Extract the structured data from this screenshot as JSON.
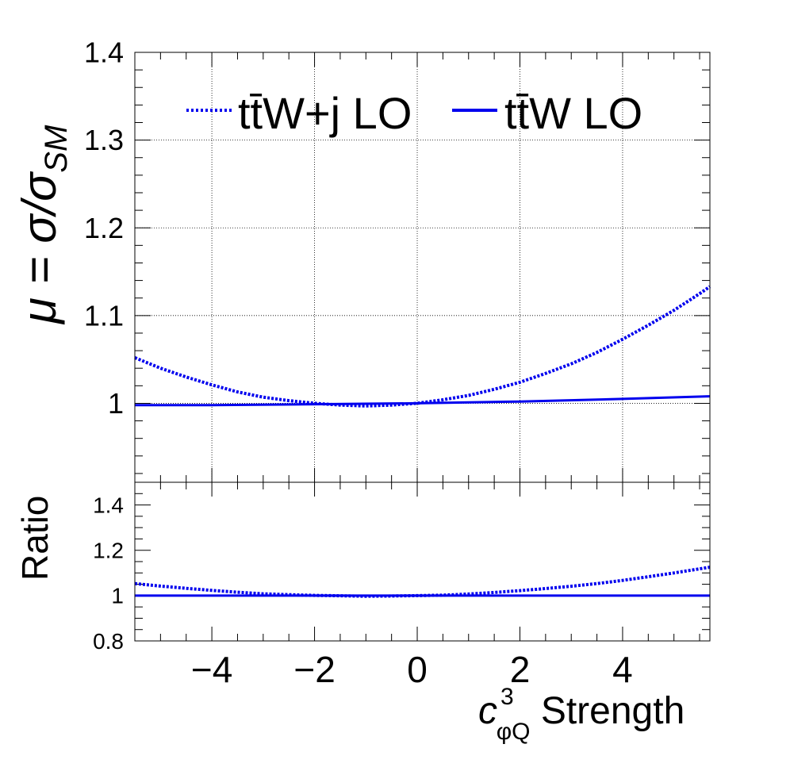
{
  "chart_data": [
    {
      "type": "line",
      "panel": "main",
      "ylabel": "μ = σ/σ",
      "ylabel_sub": "SM",
      "xlim": [
        -5.5,
        5.7
      ],
      "ylim": [
        0.91,
        1.4
      ],
      "yticks": [
        1,
        1.1,
        1.2,
        1.3,
        1.4
      ],
      "ytick_labels": [
        "1",
        "1.1",
        "1.2",
        "1.3",
        "1.4"
      ],
      "xticks": [
        -4,
        -2,
        0,
        2,
        4
      ],
      "grid": true,
      "legend_position": "top",
      "series": [
        {
          "name": "tt̄W+j LO",
          "style": "dotted",
          "color": "#0000ee",
          "x": [
            -5.5,
            -5.0,
            -4.5,
            -4.0,
            -3.5,
            -3.0,
            -2.5,
            -2.0,
            -1.5,
            -1.0,
            -0.5,
            0.0,
            0.5,
            1.0,
            1.5,
            2.0,
            2.5,
            3.0,
            3.5,
            4.0,
            4.5,
            5.0,
            5.5,
            5.7
          ],
          "y": [
            1.052,
            1.04,
            1.03,
            1.021,
            1.013,
            1.007,
            1.003,
            1.0,
            0.998,
            0.997,
            0.998,
            1.0,
            1.004,
            1.009,
            1.016,
            1.024,
            1.034,
            1.045,
            1.058,
            1.073,
            1.089,
            1.106,
            1.125,
            1.133
          ]
        },
        {
          "name": "tt̄W LO",
          "style": "solid",
          "color": "#0000ee",
          "x": [
            -5.5,
            -4.0,
            -2.0,
            0.0,
            2.0,
            4.0,
            5.7
          ],
          "y": [
            0.998,
            0.998,
            0.999,
            1.0,
            1.002,
            1.005,
            1.008
          ]
        }
      ]
    },
    {
      "type": "line",
      "panel": "ratio",
      "xlabel": "c",
      "xlabel_sup": "3",
      "xlabel_sub": "φQ",
      "xlabel_rest": " Strength",
      "ylabel": "Ratio",
      "xlim": [
        -5.5,
        5.7
      ],
      "ylim": [
        0.8,
        1.5
      ],
      "yticks": [
        0.8,
        1,
        1.2,
        1.4
      ],
      "ytick_labels": [
        "0.8",
        "1",
        "1.2",
        "1.4"
      ],
      "xticks": [
        -4,
        -2,
        0,
        2,
        4
      ],
      "xtick_labels": [
        "−4",
        "−2",
        "0",
        "2",
        "4"
      ],
      "grid": false,
      "series": [
        {
          "name": "tt̄W+j LO",
          "style": "dotted",
          "color": "#0000ee",
          "x": [
            -5.5,
            -5.0,
            -4.5,
            -4.0,
            -3.5,
            -3.0,
            -2.5,
            -2.0,
            -1.5,
            -1.0,
            -0.5,
            0.0,
            0.5,
            1.0,
            1.5,
            2.0,
            2.5,
            3.0,
            3.5,
            4.0,
            4.5,
            5.0,
            5.5,
            5.7
          ],
          "y": [
            1.053,
            1.042,
            1.032,
            1.023,
            1.015,
            1.008,
            1.004,
            1.001,
            0.999,
            0.997,
            0.998,
            1.0,
            1.002,
            1.007,
            1.014,
            1.022,
            1.031,
            1.041,
            1.053,
            1.067,
            1.083,
            1.1,
            1.118,
            1.125
          ]
        },
        {
          "name": "tt̄W LO",
          "style": "solid",
          "color": "#0000ee",
          "x": [
            -5.5,
            5.7
          ],
          "y": [
            1.0,
            1.0
          ]
        }
      ]
    }
  ]
}
